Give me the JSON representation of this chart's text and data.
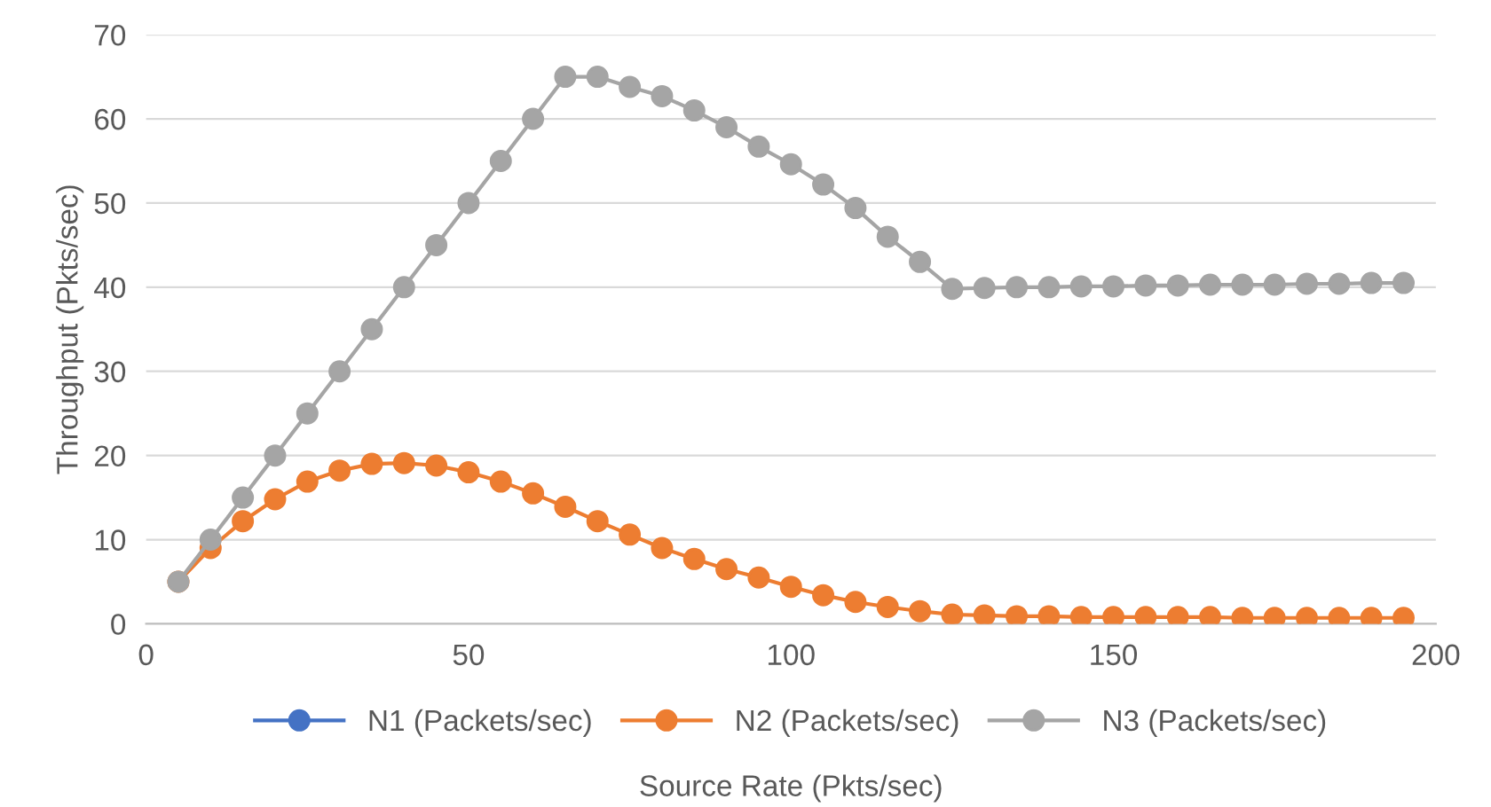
{
  "chart_data": {
    "type": "line",
    "xlabel": "Source Rate (Pkts/sec)",
    "ylabel": "Throughput (Pkts/sec)",
    "x": [
      5,
      10,
      15,
      20,
      25,
      30,
      35,
      40,
      45,
      50,
      55,
      60,
      65,
      70,
      75,
      80,
      85,
      90,
      95,
      100,
      105,
      110,
      115,
      120,
      125,
      130,
      135,
      140,
      145,
      150,
      155,
      160,
      165,
      170,
      175,
      180,
      185,
      190,
      195
    ],
    "series": [
      {
        "name": "N1 (Packets/sec)",
        "color": "#4472c4",
        "values": [
          null,
          null,
          null,
          null,
          null,
          null,
          null,
          null,
          null,
          null,
          null,
          null,
          null,
          null,
          null,
          null,
          null,
          null,
          null,
          null,
          null,
          null,
          null,
          null,
          null,
          null,
          null,
          null,
          null,
          null,
          null,
          null,
          null,
          null,
          null,
          null,
          null,
          null,
          null
        ]
      },
      {
        "name": "N2 (Packets/sec)",
        "color": "#ed7d31",
        "values": [
          5,
          9,
          12.2,
          14.8,
          16.9,
          18.2,
          19,
          19.1,
          18.8,
          18,
          16.9,
          15.5,
          13.9,
          12.2,
          10.6,
          9,
          7.7,
          6.5,
          5.5,
          4.4,
          3.4,
          2.6,
          2,
          1.5,
          1.1,
          1,
          0.9,
          0.9,
          0.8,
          0.8,
          0.8,
          0.8,
          0.8,
          0.7,
          0.7,
          0.7,
          0.7,
          0.7,
          0.7
        ]
      },
      {
        "name": "N3 (Packets/sec)",
        "color": "#a5a5a5",
        "values": [
          5,
          10,
          15,
          20,
          25,
          30,
          35,
          40,
          45,
          50,
          55,
          60,
          65,
          65,
          63.8,
          62.7,
          61,
          59,
          56.7,
          54.6,
          52.2,
          49.4,
          46,
          43,
          39.8,
          39.9,
          40,
          40,
          40.1,
          40.1,
          40.2,
          40.2,
          40.3,
          40.3,
          40.3,
          40.4,
          40.4,
          40.5,
          40.5
        ]
      }
    ],
    "xlim": [
      0,
      200
    ],
    "xticks": [
      0,
      50,
      100,
      150,
      200
    ],
    "ylim": [
      0,
      70
    ],
    "yticks": [
      0,
      10,
      20,
      30,
      40,
      50,
      60,
      70
    ],
    "grid": "y",
    "legend": "bottom",
    "marker": "circle",
    "line_style": "solid"
  }
}
